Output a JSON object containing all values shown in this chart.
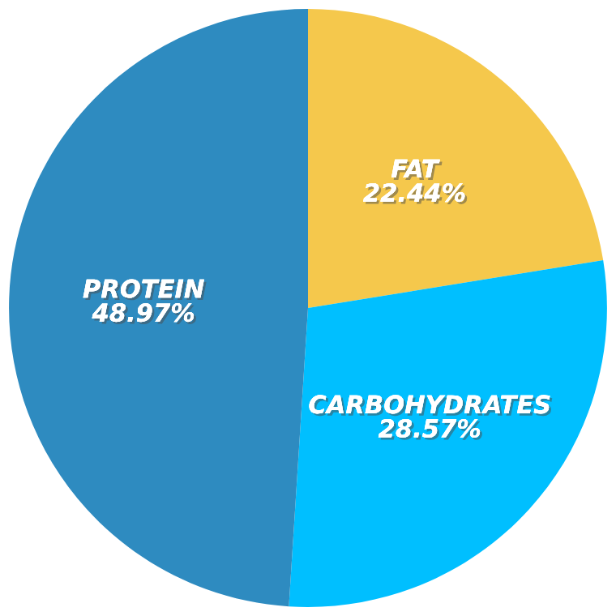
{
  "chart_data": {
    "type": "pie",
    "categories": [
      "FAT",
      "CARBOHYDRATES",
      "PROTEIN"
    ],
    "values": [
      22.44,
      28.57,
      48.97
    ],
    "colors": [
      "#f5c84c",
      "#00bfff",
      "#2e8bc0"
    ],
    "value_labels": [
      "22.44%",
      "28.57%",
      "48.97%"
    ]
  }
}
